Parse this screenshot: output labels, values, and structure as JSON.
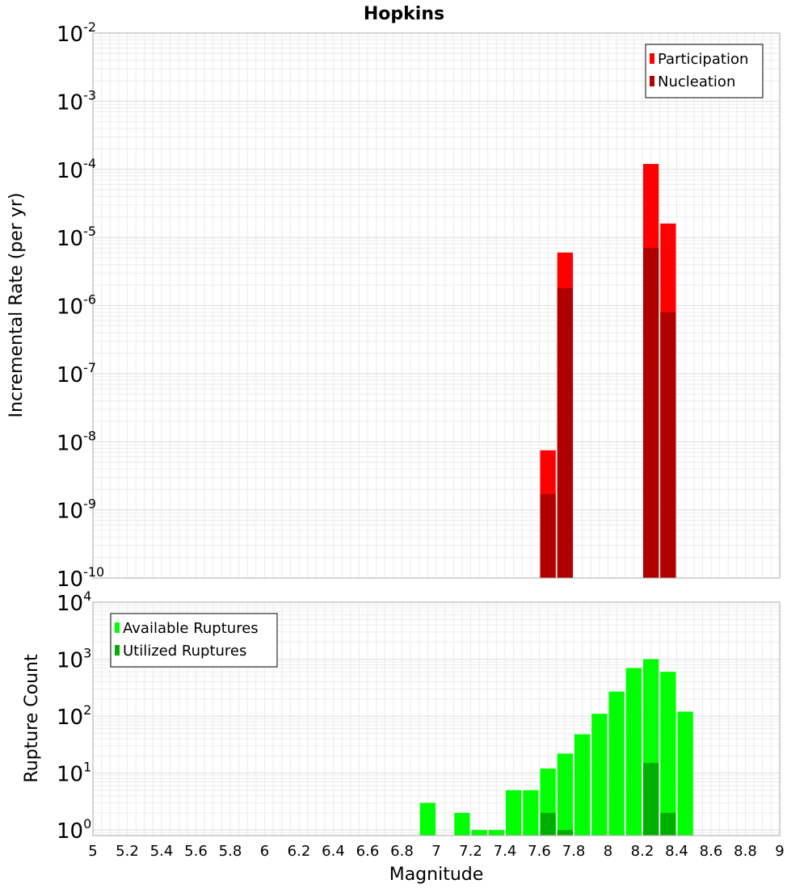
{
  "chart_data": {
    "title": "Hopkins",
    "xlabel": "Magnitude",
    "x_ticks": [
      "5",
      "5.2",
      "5.4",
      "5.6",
      "5.8",
      "6",
      "6.2",
      "6.4",
      "6.6",
      "6.8",
      "7",
      "7.2",
      "7.4",
      "7.6",
      "7.8",
      "8",
      "8.2",
      "8.4",
      "8.6",
      "8.8",
      "9"
    ],
    "xlim": [
      5,
      9
    ],
    "grid": true,
    "panels": [
      {
        "type": "bar",
        "ylabel": "Incremental Rate (per yr)",
        "yscale": "log",
        "ylim": [
          1e-10,
          0.01
        ],
        "y_ticks": [
          {
            "base": "10",
            "exp": "-10",
            "value": 1e-10
          },
          {
            "base": "10",
            "exp": "-9",
            "value": 1e-09
          },
          {
            "base": "10",
            "exp": "-8",
            "value": 1e-08
          },
          {
            "base": "10",
            "exp": "-7",
            "value": 1e-07
          },
          {
            "base": "10",
            "exp": "-6",
            "value": 1e-06
          },
          {
            "base": "10",
            "exp": "-5",
            "value": 1e-05
          },
          {
            "base": "10",
            "exp": "-4",
            "value": 0.0001
          },
          {
            "base": "10",
            "exp": "-3",
            "value": 0.001
          },
          {
            "base": "10",
            "exp": "-2",
            "value": 0.01
          }
        ],
        "legend_position": "top-right",
        "series": [
          {
            "name": "Participation",
            "color": "#ff0000",
            "x": [
              7.65,
              7.75,
              8.25,
              8.35
            ],
            "values": [
              7.5e-09,
              6e-06,
              0.00012,
              1.6e-05
            ]
          },
          {
            "name": "Nucleation",
            "color": "#b00000",
            "x": [
              7.65,
              7.75,
              8.25,
              8.35
            ],
            "values": [
              1.7e-09,
              1.8e-06,
              7e-06,
              8e-07
            ]
          }
        ]
      },
      {
        "type": "bar",
        "ylabel": "Rupture Count",
        "yscale": "log",
        "ylim": [
          0.8,
          10000
        ],
        "y_ticks": [
          {
            "base": "10",
            "exp": "0",
            "value": 1
          },
          {
            "base": "10",
            "exp": "1",
            "value": 10
          },
          {
            "base": "10",
            "exp": "2",
            "value": 100
          },
          {
            "base": "10",
            "exp": "3",
            "value": 1000
          },
          {
            "base": "10",
            "exp": "4",
            "value": 10000
          }
        ],
        "legend_position": "top-left",
        "series": [
          {
            "name": "Available Ruptures",
            "color": "#00ff00",
            "x": [
              6.95,
              7.15,
              7.25,
              7.35,
              7.45,
              7.55,
              7.65,
              7.75,
              7.85,
              7.95,
              8.05,
              8.15,
              8.25,
              8.35,
              8.45
            ],
            "values": [
              3,
              2,
              1,
              1,
              5,
              5,
              12,
              22,
              48,
              110,
              270,
              700,
              1000,
              600,
              120
            ]
          },
          {
            "name": "Utilized Ruptures",
            "color": "#00b000",
            "x": [
              7.65,
              7.75,
              8.25,
              8.35
            ],
            "values": [
              2,
              1,
              15,
              2
            ]
          }
        ]
      }
    ]
  }
}
